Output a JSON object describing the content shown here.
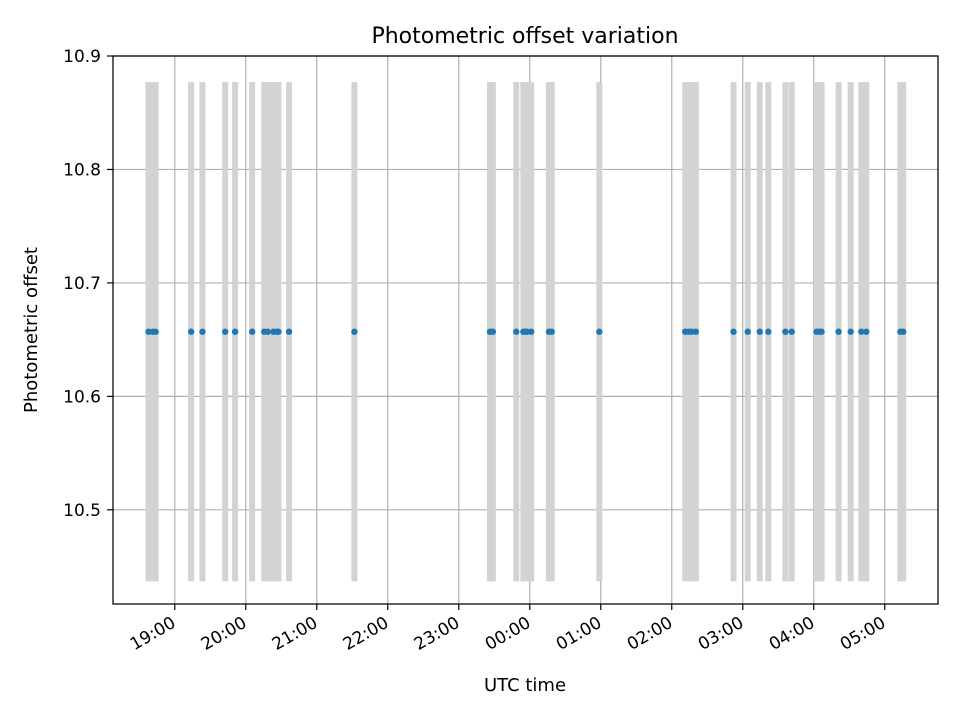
{
  "chart_data": {
    "type": "scatter",
    "title": "Photometric offset variation",
    "xlabel": "UTC time",
    "ylabel": "Photometric offset",
    "grid": true,
    "x_unit": "hours since 18:00 UTC (values above 24 wrap past midnight)",
    "xlim": [
      18.13,
      29.75
    ],
    "ylim": [
      10.417,
      10.9
    ],
    "xticks": [
      {
        "value": 19,
        "label": "19:00"
      },
      {
        "value": 20,
        "label": "20:00"
      },
      {
        "value": 21,
        "label": "21:00"
      },
      {
        "value": 22,
        "label": "22:00"
      },
      {
        "value": 23,
        "label": "23:00"
      },
      {
        "value": 24,
        "label": "00:00"
      },
      {
        "value": 25,
        "label": "01:00"
      },
      {
        "value": 26,
        "label": "02:00"
      },
      {
        "value": 27,
        "label": "03:00"
      },
      {
        "value": 28,
        "label": "04:00"
      },
      {
        "value": 29,
        "label": "05:00"
      }
    ],
    "yticks": [
      {
        "value": 10.5,
        "label": "10.5"
      },
      {
        "value": 10.6,
        "label": "10.6"
      },
      {
        "value": 10.7,
        "label": "10.7"
      },
      {
        "value": 10.8,
        "label": "10.8"
      },
      {
        "value": 10.9,
        "label": "10.9"
      }
    ],
    "band_range": [
      10.437,
      10.877
    ],
    "band_color": "#d3d3d3",
    "point_color": "#1f77b4",
    "grid_color": "#b0b0b0",
    "series": [
      {
        "name": "Photometric offset",
        "x": [
          18.63,
          18.69,
          18.73,
          19.23,
          19.39,
          19.71,
          19.85,
          20.09,
          20.26,
          20.31,
          20.39,
          20.44,
          20.46,
          20.61,
          21.53,
          23.44,
          23.48,
          23.81,
          23.91,
          23.94,
          23.96,
          24.02,
          24.27,
          24.31,
          24.98,
          26.19,
          26.24,
          26.28,
          26.34,
          26.87,
          27.07,
          27.24,
          27.36,
          27.6,
          27.69,
          28.04,
          28.08,
          28.11,
          28.35,
          28.52,
          28.67,
          28.74,
          29.22,
          29.26
        ],
        "y": [
          10.657,
          10.657,
          10.657,
          10.657,
          10.657,
          10.657,
          10.657,
          10.657,
          10.657,
          10.657,
          10.657,
          10.657,
          10.657,
          10.657,
          10.657,
          10.657,
          10.657,
          10.657,
          10.657,
          10.657,
          10.657,
          10.657,
          10.657,
          10.657,
          10.657,
          10.657,
          10.657,
          10.657,
          10.657,
          10.657,
          10.657,
          10.657,
          10.657,
          10.657,
          10.657,
          10.657,
          10.657,
          10.657,
          10.657,
          10.657,
          10.657,
          10.657,
          10.657,
          10.657
        ]
      }
    ]
  }
}
